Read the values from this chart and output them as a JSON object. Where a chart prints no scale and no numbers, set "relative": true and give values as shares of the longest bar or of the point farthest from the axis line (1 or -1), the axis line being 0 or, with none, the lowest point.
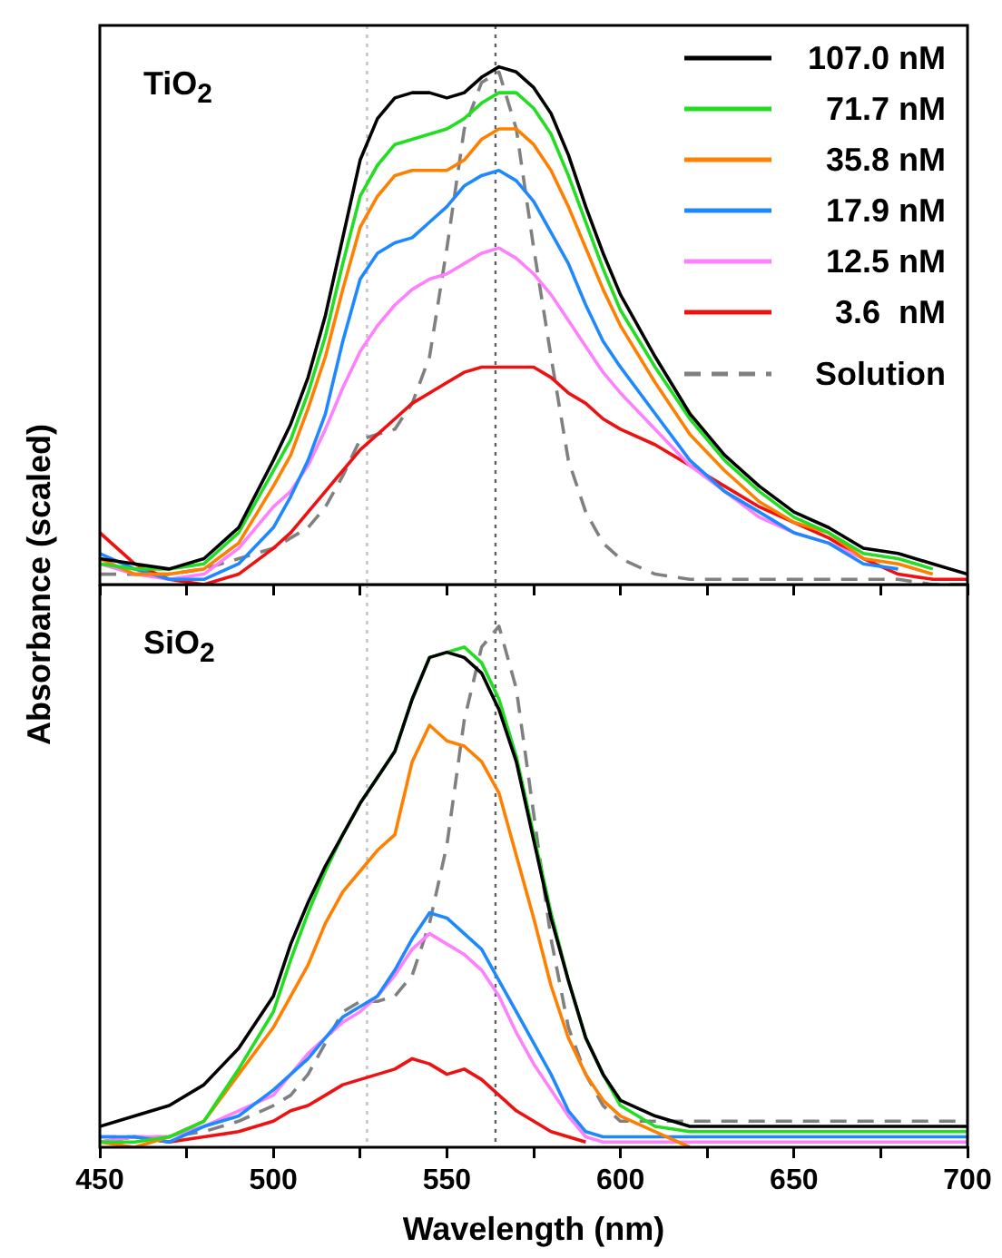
{
  "chart_data": [
    {
      "type": "line",
      "ylabel": "Absorbance (scaled)",
      "annotations": [
        "TiO$_{2}$"
      ],
      "relative": true,
      "legend": "top right",
      "tick_labels": false,
      "xlim": [
        450,
        700
      ],
      "xticks": [
        450,
        {
          "value": 475,
          "label": null
        },
        500,
        {
          "value": 525,
          "label": null
        },
        550,
        {
          "value": 575,
          "label": null
        },
        600,
        {
          "value": 625,
          "label": null
        },
        650,
        {
          "value": 675,
          "label": null
        },
        700
      ],
      "x": [
        450,
        460,
        470,
        480,
        490,
        500,
        505,
        510,
        515,
        520,
        525,
        530,
        535,
        540,
        545,
        550,
        555,
        560,
        565,
        570,
        575,
        580,
        585,
        590,
        595,
        600,
        610,
        620,
        630,
        640,
        650,
        660,
        670,
        680,
        690,
        700
      ],
      "ref_lines": [
        {
          "axis": "x",
          "value": 527,
          "color": "#c0c0c0",
          "line_style": "dotted"
        },
        {
          "axis": "x",
          "value": 564,
          "color": "#606060",
          "line_style": "dotted"
        }
      ],
      "series": [
        {
          "name": "107.0 nM",
          "color": "#000000",
          "values": [
            0.05,
            0.04,
            0.03,
            0.05,
            0.11,
            0.24,
            0.31,
            0.4,
            0.52,
            0.67,
            0.82,
            0.9,
            0.94,
            0.95,
            0.95,
            0.94,
            0.95,
            0.98,
            1.0,
            0.99,
            0.96,
            0.91,
            0.83,
            0.73,
            0.64,
            0.56,
            0.44,
            0.33,
            0.25,
            0.19,
            0.14,
            0.11,
            0.07,
            0.06,
            0.04,
            0.02
          ]
        },
        {
          "name": "71.7 nM",
          "color": "#22dd22",
          "values": [
            0.04,
            0.03,
            0.03,
            0.04,
            0.1,
            0.22,
            0.28,
            0.37,
            0.48,
            0.62,
            0.75,
            0.81,
            0.85,
            0.86,
            0.87,
            0.88,
            0.9,
            0.93,
            0.95,
            0.95,
            0.92,
            0.87,
            0.79,
            0.7,
            0.61,
            0.53,
            0.42,
            0.32,
            0.24,
            0.18,
            0.13,
            0.1,
            0.06,
            0.05,
            0.03,
            null
          ]
        },
        {
          "name": "35.8 nM",
          "color": "#ff8000",
          "values": [
            0.05,
            0.02,
            0.02,
            0.03,
            0.08,
            0.19,
            0.25,
            0.34,
            0.44,
            0.57,
            0.69,
            0.75,
            0.79,
            0.8,
            0.8,
            0.8,
            0.82,
            0.86,
            0.88,
            0.88,
            0.85,
            0.8,
            0.73,
            0.65,
            0.57,
            0.5,
            0.39,
            0.29,
            0.22,
            0.16,
            0.12,
            0.1,
            0.05,
            0.04,
            0.02,
            null
          ]
        },
        {
          "name": "17.9 nM",
          "color": "#1e88ff",
          "values": [
            0.06,
            0.03,
            0.01,
            0.01,
            0.04,
            0.11,
            0.17,
            0.24,
            0.33,
            0.47,
            0.59,
            0.64,
            0.66,
            0.67,
            0.7,
            0.73,
            0.77,
            0.79,
            0.8,
            0.78,
            0.74,
            0.68,
            0.62,
            0.54,
            0.47,
            0.42,
            0.33,
            0.24,
            0.18,
            0.14,
            0.1,
            0.08,
            0.04,
            0.03,
            null,
            null
          ]
        },
        {
          "name": "12.5 nM",
          "color": "#ff80ff",
          "values": [
            0.04,
            0.02,
            0.01,
            0.02,
            0.07,
            0.15,
            0.18,
            0.23,
            0.3,
            0.38,
            0.45,
            0.5,
            0.54,
            0.57,
            0.59,
            0.6,
            0.62,
            0.64,
            0.65,
            0.63,
            0.6,
            0.56,
            0.51,
            0.46,
            0.41,
            0.37,
            0.3,
            0.23,
            0.18,
            0.13,
            0.1,
            0.08,
            0.05,
            null,
            null,
            null
          ]
        },
        {
          "name": "3.6  nM",
          "color": "#ee1111",
          "values": [
            0.1,
            0.04,
            0.01,
            0.0,
            0.02,
            0.07,
            0.1,
            0.14,
            0.18,
            0.22,
            0.26,
            0.29,
            0.32,
            0.35,
            0.37,
            0.39,
            0.41,
            0.42,
            0.42,
            0.42,
            0.42,
            0.4,
            0.37,
            0.35,
            0.32,
            0.3,
            0.27,
            0.23,
            0.19,
            0.15,
            0.12,
            0.09,
            0.05,
            0.02,
            0.01,
            0.01
          ]
        },
        {
          "name": "Solution",
          "color": "#808080",
          "line_style": "dashed",
          "values": [
            0.02,
            0.02,
            0.02,
            0.03,
            0.05,
            0.07,
            0.09,
            0.11,
            0.15,
            0.21,
            0.28,
            0.29,
            0.3,
            0.35,
            0.44,
            0.65,
            0.88,
            0.97,
            0.99,
            0.88,
            0.65,
            0.44,
            0.24,
            0.14,
            0.08,
            0.05,
            0.02,
            0.01,
            0.01,
            0.01,
            0.01,
            0.01,
            0.01,
            0.01,
            0.0,
            0.0
          ]
        }
      ]
    },
    {
      "type": "line",
      "xlabel": "Wavelength (nm)",
      "annotations": [
        "SiO$_{2}$"
      ],
      "relative": true,
      "tick_labels": "x",
      "xlim": [
        450,
        700
      ],
      "xticks": [
        450,
        {
          "value": 475,
          "label": null
        },
        500,
        {
          "value": 525,
          "label": null
        },
        550,
        {
          "value": 575,
          "label": null
        },
        600,
        {
          "value": 625,
          "label": null
        },
        650,
        {
          "value": 675,
          "label": null
        },
        700
      ],
      "x": [
        450,
        460,
        470,
        480,
        490,
        500,
        505,
        510,
        515,
        520,
        525,
        530,
        535,
        540,
        545,
        550,
        555,
        560,
        565,
        570,
        575,
        580,
        585,
        590,
        595,
        600,
        610,
        620,
        630,
        640,
        650,
        660,
        670,
        680,
        690,
        700
      ],
      "ref_lines": [
        {
          "axis": "x",
          "value": 527,
          "color": "#c0c0c0",
          "line_style": "dotted"
        },
        {
          "axis": "x",
          "value": 564,
          "color": "#606060",
          "line_style": "dotted"
        }
      ],
      "series": [
        {
          "color": "#000000",
          "values": [
            0.04,
            0.06,
            0.08,
            0.12,
            0.19,
            0.29,
            0.39,
            0.47,
            0.54,
            0.6,
            0.66,
            0.71,
            0.76,
            0.86,
            0.94,
            0.95,
            0.94,
            0.91,
            0.84,
            0.74,
            0.59,
            0.44,
            0.32,
            0.21,
            0.14,
            0.09,
            0.06,
            0.04,
            0.04,
            0.04,
            0.04,
            0.04,
            0.04,
            0.04,
            0.04,
            0.04
          ]
        },
        {
          "color": "#22dd22",
          "values": [
            0.01,
            0.01,
            0.02,
            0.05,
            0.15,
            0.26,
            0.36,
            0.45,
            0.53,
            0.6,
            0.66,
            0.71,
            0.76,
            0.86,
            0.94,
            0.95,
            0.96,
            0.93,
            0.86,
            0.75,
            0.6,
            0.45,
            0.32,
            0.21,
            0.14,
            0.08,
            0.04,
            0.03,
            0.03,
            0.03,
            0.03,
            0.03,
            0.03,
            0.03,
            0.03,
            0.03
          ]
        },
        {
          "color": "#ff8000",
          "values": [
            0.01,
            0.0,
            0.02,
            0.05,
            0.14,
            0.23,
            0.29,
            0.35,
            0.43,
            0.49,
            0.53,
            0.57,
            0.6,
            0.74,
            0.81,
            0.78,
            0.77,
            0.74,
            0.68,
            0.56,
            0.44,
            0.31,
            0.21,
            0.14,
            0.09,
            0.06,
            0.03,
            0.0,
            null,
            null,
            null,
            null,
            null,
            null,
            null,
            null
          ]
        },
        {
          "color": "#1e88ff",
          "values": [
            0.02,
            0.02,
            0.01,
            0.04,
            0.06,
            0.11,
            0.14,
            0.17,
            0.21,
            0.25,
            0.27,
            0.29,
            0.34,
            0.4,
            0.45,
            0.44,
            0.41,
            0.38,
            0.32,
            0.26,
            0.2,
            0.14,
            0.07,
            0.03,
            0.02,
            0.02,
            0.02,
            0.02,
            0.02,
            0.02,
            0.02,
            0.02,
            0.02,
            0.02,
            0.02,
            0.02
          ]
        },
        {
          "color": "#ff80ff",
          "values": [
            0.01,
            0.02,
            0.02,
            0.04,
            0.07,
            0.1,
            0.14,
            0.18,
            0.21,
            0.24,
            0.26,
            0.29,
            0.33,
            0.38,
            0.41,
            0.39,
            0.37,
            0.34,
            0.29,
            0.22,
            0.16,
            0.11,
            0.06,
            0.02,
            0.01,
            0.01,
            0.01,
            0.01,
            0.01,
            0.01,
            0.01,
            0.01,
            0.01,
            0.01,
            0.01,
            0.01
          ]
        },
        {
          "color": "#ee1111",
          "values": [
            0.01,
            0.02,
            0.01,
            0.02,
            0.03,
            0.05,
            0.07,
            0.08,
            0.1,
            0.12,
            0.13,
            0.14,
            0.15,
            0.17,
            0.16,
            0.14,
            0.15,
            0.13,
            0.1,
            0.07,
            0.05,
            0.03,
            0.02,
            0.01,
            null,
            null,
            null,
            null,
            null,
            null,
            null,
            null,
            null,
            null,
            null,
            null
          ]
        },
        {
          "color": "#808080",
          "line_style": "dashed",
          "values": [
            0.02,
            0.02,
            0.02,
            0.03,
            0.05,
            0.08,
            0.1,
            0.14,
            0.2,
            0.26,
            0.28,
            0.28,
            0.29,
            0.33,
            0.43,
            0.58,
            0.82,
            0.96,
            1.0,
            0.88,
            0.64,
            0.4,
            0.23,
            0.14,
            0.08,
            0.05,
            0.05,
            0.05,
            0.05,
            0.05,
            0.05,
            0.05,
            0.05,
            0.05,
            0.05,
            0.05
          ]
        }
      ]
    }
  ]
}
